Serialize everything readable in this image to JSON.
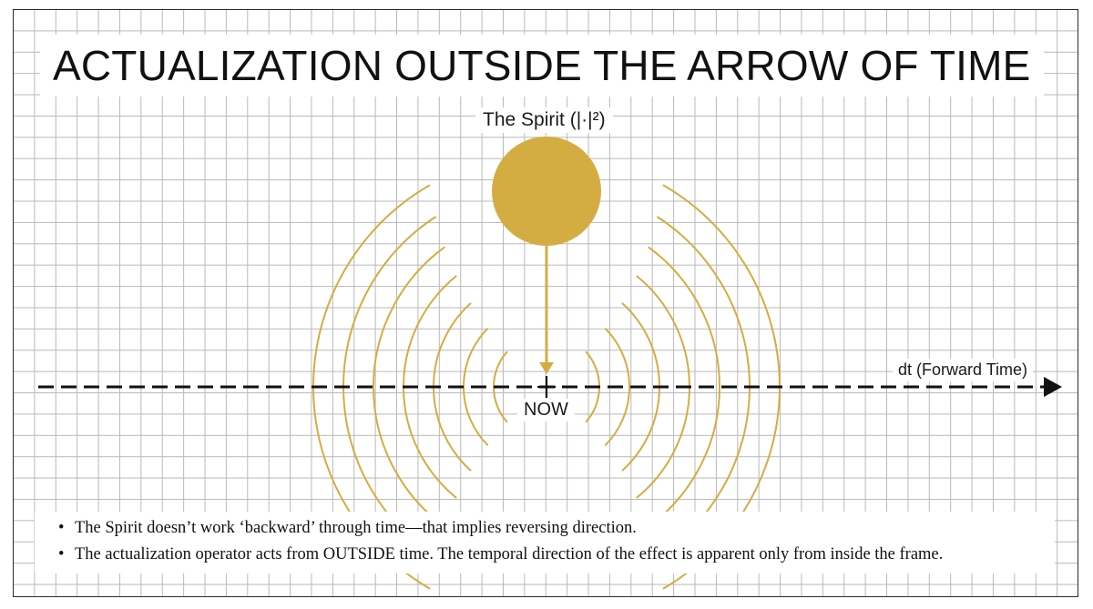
{
  "title": "ACTUALIZATION OUTSIDE THE ARROW OF TIME",
  "diagram": {
    "source_label": "The Spirit (|·|²)",
    "present_label": "NOW",
    "axis_label": "dt (Forward Time)",
    "colors": {
      "accent": "#d4ad42",
      "axis": "#111111",
      "grid": "#b9b9b9"
    },
    "ripple_rings": 7
  },
  "notes": [
    "The Spirit doesn’t work ‘backward’ through time—that implies reversing direction.",
    "The actualization operator acts from OUTSIDE time. The temporal direction of the effect is apparent only from inside the frame."
  ]
}
